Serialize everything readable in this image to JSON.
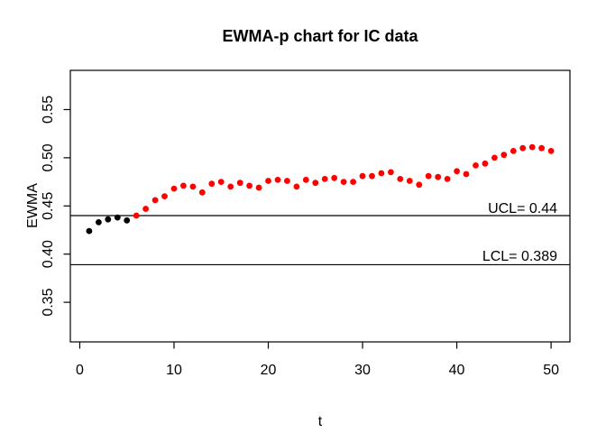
{
  "window": {
    "background": "#ffffff"
  },
  "chart_data": {
    "type": "scatter",
    "title": "EWMA-p chart for IC data",
    "xlabel": "t",
    "ylabel": "EWMA",
    "grid": false,
    "legend": "none",
    "xlim": [
      -1.0,
      52.0
    ],
    "ylim": [
      0.3089,
      0.5907
    ],
    "x_ticks": [
      0,
      10,
      20,
      30,
      40,
      50
    ],
    "x_tick_labels": [
      "0",
      "10",
      "20",
      "30",
      "40",
      "50"
    ],
    "y_ticks": [
      0.35,
      0.4,
      0.45,
      0.5,
      0.55
    ],
    "y_tick_labels": [
      "0.35",
      "0.40",
      "0.45",
      "0.50",
      "0.55"
    ],
    "control_limits": {
      "ucl": {
        "label": "UCL= 0.44",
        "value": 0.44
      },
      "lcl": {
        "label": "LCL= 0.389",
        "value": 0.389
      }
    },
    "colors": {
      "in_control_start": "#000000",
      "monitored": "#ff0000",
      "limit_line": "#000000"
    },
    "series": [
      {
        "name": "in-control-start",
        "color": "#000000",
        "marker": "filled-circle",
        "x": [
          1,
          2,
          3,
          4,
          5
        ],
        "y": [
          0.424,
          0.433,
          0.436,
          0.438,
          0.435
        ]
      },
      {
        "name": "monitored",
        "color": "#ff0000",
        "marker": "filled-circle",
        "x": [
          6,
          7,
          8,
          9,
          10,
          11,
          12,
          13,
          14,
          15,
          16,
          17,
          18,
          19,
          20,
          21,
          22,
          23,
          24,
          25,
          26,
          27,
          28,
          29,
          30,
          31,
          32,
          33,
          34,
          35,
          36,
          37,
          38,
          39,
          40,
          41,
          42,
          43,
          44,
          45,
          46,
          47,
          48,
          49,
          50
        ],
        "y": [
          0.44,
          0.447,
          0.456,
          0.46,
          0.468,
          0.471,
          0.47,
          0.464,
          0.473,
          0.475,
          0.47,
          0.474,
          0.471,
          0.469,
          0.476,
          0.477,
          0.476,
          0.47,
          0.477,
          0.474,
          0.478,
          0.479,
          0.475,
          0.475,
          0.481,
          0.481,
          0.484,
          0.485,
          0.478,
          0.476,
          0.472,
          0.481,
          0.48,
          0.478,
          0.486,
          0.483,
          0.492,
          0.494,
          0.5,
          0.503,
          0.507,
          0.51,
          0.511,
          0.51,
          0.507
        ]
      }
    ]
  }
}
